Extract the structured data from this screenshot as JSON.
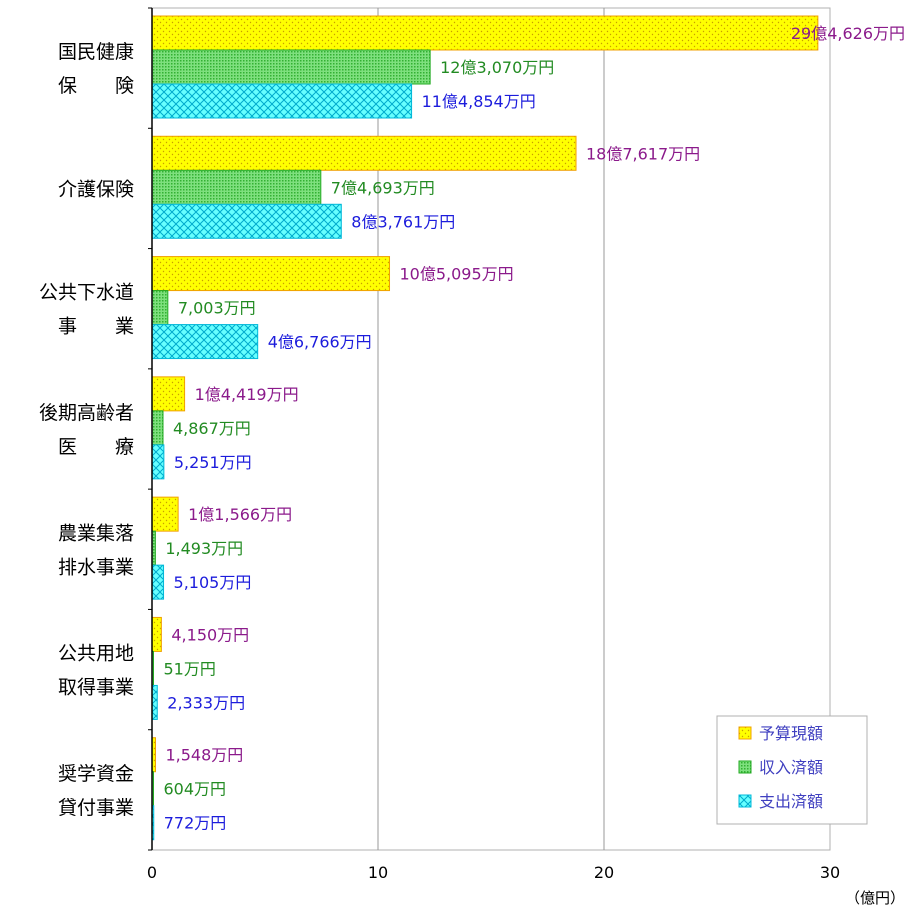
{
  "colors": {
    "budget": "#ffff00",
    "budget_border": "#f0a000",
    "budget_text": "#8b1a8b",
    "revenue": "#66dd66",
    "revenue_border": "#22aa22",
    "revenue_text": "#228b22",
    "expense": "#66ffff",
    "expense_border": "#00b8d8",
    "expense_text": "#1c1cdc",
    "grid": "#999999",
    "axis": "#000000"
  },
  "legend": {
    "placement": "bottom-right",
    "items": [
      {
        "label": "予算現額"
      },
      {
        "label": "収入済額"
      },
      {
        "label": "支出済額"
      }
    ]
  },
  "chart_data": {
    "type": "bar",
    "orientation": "horizontal",
    "xlim": [
      0,
      30
    ],
    "xticks": [
      "0",
      "10",
      "20",
      "30"
    ],
    "xunit": "（億円）",
    "grid": true,
    "categories": [
      {
        "lines": [
          "国民健康",
          "保　　険"
        ]
      },
      {
        "lines": [
          "介護保険"
        ]
      },
      {
        "lines": [
          "公共下水道",
          "事　　業"
        ]
      },
      {
        "lines": [
          "後期高齢者",
          "医　　療"
        ]
      },
      {
        "lines": [
          "農業集落",
          "排水事業"
        ]
      },
      {
        "lines": [
          "公共用地",
          "取得事業"
        ]
      },
      {
        "lines": [
          "奨学資金",
          "貸付事業"
        ]
      }
    ],
    "series": [
      {
        "name": "予算現額",
        "values": [
          29.4626,
          18.7617,
          10.5095,
          1.4419,
          1.1566,
          0.415,
          0.1548
        ],
        "labels": [
          "29億4,626万円",
          "18億7,617万円",
          "10億5,095万円",
          "1億4,419万円",
          "1億1,566万円",
          "4,150万円",
          "1,548万円"
        ]
      },
      {
        "name": "収入済額",
        "values": [
          12.307,
          7.4693,
          0.7003,
          0.4867,
          0.1493,
          0.0051,
          0.0604
        ],
        "labels": [
          "12億3,070万円",
          "7億4,693万円",
          "7,003万円",
          "4,867万円",
          "1,493万円",
          "51万円",
          "604万円"
        ]
      },
      {
        "name": "支出済額",
        "values": [
          11.4854,
          8.3761,
          4.6766,
          0.5251,
          0.5105,
          0.2333,
          0.0772
        ],
        "labels": [
          "11億4,854万円",
          "8億3,761万円",
          "4億6,766万円",
          "5,251万円",
          "5,105万円",
          "2,333万円",
          "772万円"
        ]
      }
    ]
  }
}
